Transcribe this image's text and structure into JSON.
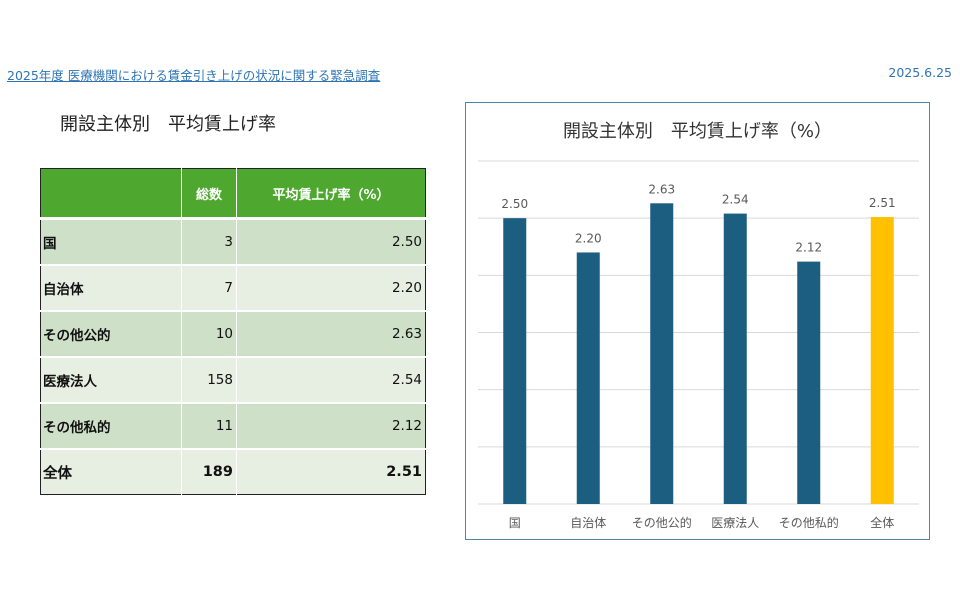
{
  "header": {
    "link_text": "2025年度 医療機関における賃金引き上げの状況に関する緊急調査",
    "date": "2025.6.25"
  },
  "section_title": "開設主体別　平均賃上げ率",
  "table": {
    "headers": [
      "",
      "総数",
      "平均賃上げ率（%）"
    ],
    "rows": [
      {
        "name": "国",
        "count": "3",
        "rate": "2.50"
      },
      {
        "name": "自治体",
        "count": "7",
        "rate": "2.20"
      },
      {
        "name": "その他公的",
        "count": "10",
        "rate": "2.63"
      },
      {
        "name": "医療法人",
        "count": "158",
        "rate": "2.54"
      },
      {
        "name": "その他私的",
        "count": "11",
        "rate": "2.12"
      },
      {
        "name": "全体",
        "count": "189",
        "rate": "2.51"
      }
    ]
  },
  "chart_data": {
    "type": "bar",
    "title": "開設主体別　平均賃上げ率（%）",
    "categories": [
      "国",
      "自治体",
      "その他公的",
      "医療法人",
      "その他私的",
      "全体"
    ],
    "values": [
      2.5,
      2.2,
      2.63,
      2.54,
      2.12,
      2.51
    ],
    "value_labels": [
      "2.50",
      "2.20",
      "2.63",
      "2.54",
      "2.12",
      "2.51"
    ],
    "xlabel": "",
    "ylabel": "",
    "ylim": [
      0,
      3.0
    ],
    "grid": true,
    "colors": {
      "default": "#1b5e80",
      "highlight": "#ffc000",
      "grid": "#d9d9d9",
      "label": "#595959"
    },
    "highlight_index": 5
  }
}
